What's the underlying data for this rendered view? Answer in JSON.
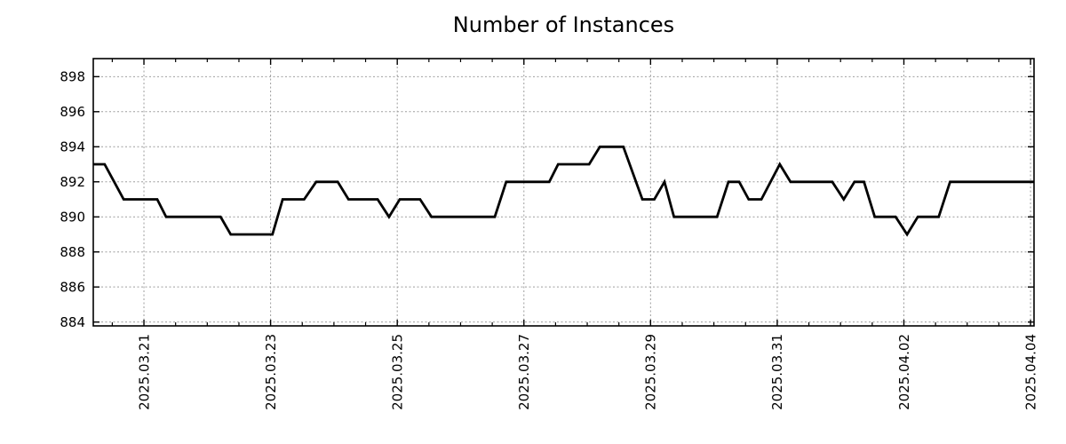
{
  "chart_data": {
    "type": "line",
    "title": "Number of Instances",
    "xlabel": "",
    "ylabel": "",
    "legend": "none",
    "grid": "dashed gray, major ticks only",
    "x_axis": {
      "tick_labels": [
        "2025.03.21",
        "2025.03.23",
        "2025.03.25",
        "2025.03.27",
        "2025.03.29",
        "2025.03.31",
        "2025.04.02",
        "2025.04.04"
      ],
      "tick_positions_days": [
        0,
        2,
        4,
        6,
        8,
        10,
        12,
        14
      ],
      "minor_tick_interval_days": 0.5,
      "xlim_days": [
        -0.8,
        14.055
      ],
      "units": "days relative to 2025.03.21",
      "label_rotation_deg": -90
    },
    "y_axis": {
      "tick_labels": [
        "884",
        "886",
        "888",
        "890",
        "892",
        "894",
        "896",
        "898"
      ],
      "tick_values": [
        884,
        886,
        888,
        890,
        892,
        894,
        896,
        898
      ],
      "ylim": [
        883.78,
        899.03
      ]
    },
    "series": [
      {
        "name": "instances",
        "color": "#000000",
        "line_width": 2.8,
        "points": [
          [
            -0.8,
            893
          ],
          [
            -0.62,
            893
          ],
          [
            -0.32,
            891
          ],
          [
            0.21,
            891
          ],
          [
            0.35,
            890
          ],
          [
            1.21,
            890
          ],
          [
            1.37,
            889
          ],
          [
            2.03,
            889
          ],
          [
            2.19,
            891
          ],
          [
            2.53,
            891
          ],
          [
            2.72,
            892
          ],
          [
            3.06,
            892
          ],
          [
            3.23,
            891
          ],
          [
            3.69,
            891
          ],
          [
            3.87,
            890
          ],
          [
            4.04,
            891
          ],
          [
            4.36,
            891
          ],
          [
            4.54,
            890
          ],
          [
            5.54,
            890
          ],
          [
            5.72,
            892
          ],
          [
            6.4,
            892
          ],
          [
            6.54,
            893
          ],
          [
            7.03,
            893
          ],
          [
            7.2,
            894
          ],
          [
            7.57,
            894
          ],
          [
            7.87,
            891
          ],
          [
            8.06,
            891
          ],
          [
            8.22,
            892
          ],
          [
            8.37,
            890
          ],
          [
            9.05,
            890
          ],
          [
            9.23,
            892
          ],
          [
            9.4,
            892
          ],
          [
            9.55,
            891
          ],
          [
            9.75,
            891
          ],
          [
            10.04,
            893
          ],
          [
            10.21,
            892
          ],
          [
            10.87,
            892
          ],
          [
            11.05,
            891
          ],
          [
            11.22,
            892
          ],
          [
            11.37,
            892
          ],
          [
            11.54,
            890
          ],
          [
            11.87,
            890
          ],
          [
            12.05,
            889
          ],
          [
            12.22,
            890
          ],
          [
            12.55,
            890
          ],
          [
            12.73,
            892
          ],
          [
            14.055,
            892
          ]
        ]
      }
    ]
  },
  "colors": {
    "background": "#ffffff",
    "line": "#000000",
    "grid": "#9e9e9e",
    "border": "#000000",
    "tick": "#000000",
    "text": "#000000"
  }
}
